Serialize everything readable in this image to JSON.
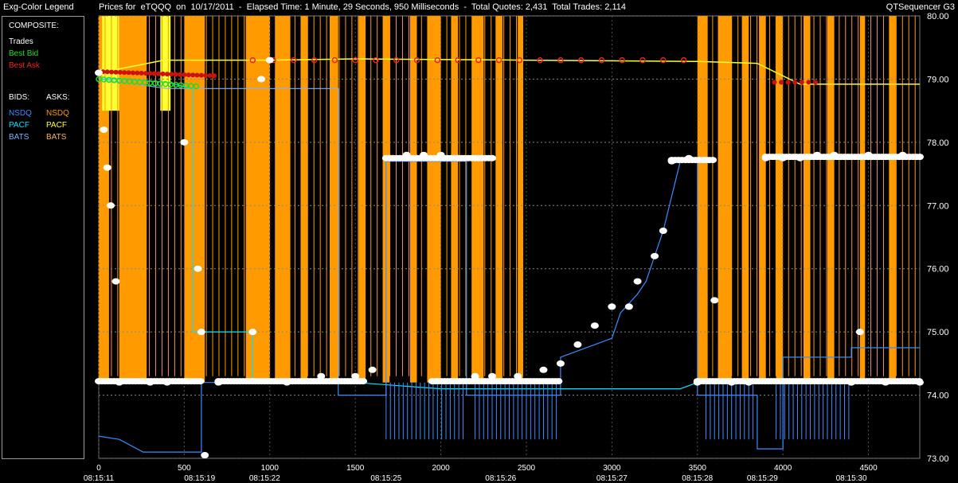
{
  "window": {
    "legend_title": "Exg-Color Legend",
    "chart_title": "Prices for  eTQQQ  on  10/17/2011  -  Elapsed Time: 1 Minute, 29 Seconds, 950 Milliseconds  -  Total Quotes: 2,431  Total Trades: 2,114",
    "app_name": "QTSequencer G3"
  },
  "legend": {
    "composite_heading": "COMPOSITE:",
    "composite_items": [
      {
        "label": "Trades",
        "color": "#ffffff"
      },
      {
        "label": "Best Bid",
        "color": "#22dd22"
      },
      {
        "label": "Best Ask",
        "color": "#ee2222"
      }
    ],
    "bids_heading": "BIDS:",
    "asks_heading": "ASKS:",
    "bids": [
      {
        "label": "NSDQ",
        "color": "#3c8cff"
      },
      {
        "label": "PACF",
        "color": "#00e5ff"
      },
      {
        "label": "BATS",
        "color": "#7fb2ff"
      }
    ],
    "asks": [
      {
        "label": "NSDQ",
        "color": "#ff9a00"
      },
      {
        "label": "PACF",
        "color": "#ffff33"
      },
      {
        "label": "BATS",
        "color": "#ffb060"
      }
    ]
  },
  "chart_data": {
    "type": "scatter",
    "title": "",
    "xlim": [
      0,
      4800
    ],
    "ylim": [
      73.0,
      80.0
    ],
    "y_ticks": [
      "80.00",
      "79.00",
      "78.00",
      "77.00",
      "76.00",
      "75.00",
      "74.00",
      "73.00"
    ],
    "x_ticks": [
      "0",
      "500",
      "1000",
      "1500",
      "2000",
      "2500",
      "3000",
      "3500",
      "4000",
      "4500"
    ],
    "time_labels": [
      {
        "x": 0,
        "label": "08:15:11"
      },
      {
        "x": 590,
        "label": "08:15:19"
      },
      {
        "x": 970,
        "label": "08:15:22"
      },
      {
        "x": 1680,
        "label": "08:15:25"
      },
      {
        "x": 2350,
        "label": "08:15:26"
      },
      {
        "x": 3000,
        "label": "08:15:27"
      },
      {
        "x": 3500,
        "label": "08:15:28"
      },
      {
        "x": 3880,
        "label": "08:15:29"
      },
      {
        "x": 4400,
        "label": "08:15:30"
      }
    ],
    "grid": true,
    "best_ask": [
      [
        0,
        79.15
      ],
      [
        100,
        79.15
      ],
      [
        380,
        79.3
      ],
      [
        1000,
        79.3
      ],
      [
        1500,
        79.32
      ],
      [
        2500,
        79.3
      ],
      [
        3500,
        79.28
      ],
      [
        3850,
        79.25
      ],
      [
        4100,
        78.92
      ],
      [
        4800,
        78.92
      ]
    ],
    "nsdq_bid": [
      [
        0,
        73.35
      ],
      [
        120,
        73.3
      ],
      [
        260,
        73.1
      ],
      [
        600,
        73.1
      ],
      [
        600,
        74.2
      ],
      [
        1400,
        74.2
      ],
      [
        1400,
        74.0
      ],
      [
        1680,
        74.0
      ],
      [
        1680,
        77.7
      ],
      [
        2150,
        77.7
      ],
      [
        2150,
        74.0
      ],
      [
        2700,
        74.0
      ],
      [
        2700,
        74.6
      ],
      [
        3000,
        74.9
      ],
      [
        3050,
        75.3
      ],
      [
        3150,
        75.6
      ],
      [
        3200,
        75.8
      ],
      [
        3300,
        76.6
      ],
      [
        3400,
        77.7
      ],
      [
        3500,
        77.7
      ],
      [
        3500,
        74.0
      ],
      [
        3850,
        74.0
      ],
      [
        3850,
        73.15
      ],
      [
        4000,
        73.15
      ],
      [
        4000,
        74.6
      ],
      [
        4400,
        74.6
      ],
      [
        4400,
        74.75
      ],
      [
        4800,
        74.75
      ]
    ],
    "pacf_bid": [
      [
        0,
        79.0
      ],
      [
        120,
        79.0
      ],
      [
        400,
        78.95
      ],
      [
        550,
        78.85
      ],
      [
        550,
        75.0
      ],
      [
        900,
        75.0
      ],
      [
        900,
        74.2
      ],
      [
        1500,
        74.2
      ],
      [
        2000,
        74.1
      ],
      [
        3400,
        74.1
      ],
      [
        3500,
        74.2
      ],
      [
        4800,
        74.2
      ]
    ],
    "bats_bid": [
      [
        0,
        79.0
      ],
      [
        400,
        78.85
      ],
      [
        1400,
        78.85
      ],
      [
        1400,
        74.2
      ]
    ],
    "trades": [
      [
        0,
        79.1
      ],
      [
        30,
        78.2
      ],
      [
        50,
        77.6
      ],
      [
        70,
        77.0
      ],
      [
        100,
        75.8
      ],
      [
        120,
        74.2
      ],
      [
        300,
        74.2
      ],
      [
        400,
        74.2
      ],
      [
        500,
        78.0
      ],
      [
        580,
        76.0
      ],
      [
        600,
        75.0
      ],
      [
        620,
        73.05
      ],
      [
        700,
        74.2
      ],
      [
        900,
        75.0
      ],
      [
        950,
        79.0
      ],
      [
        1000,
        79.3
      ],
      [
        1100,
        74.2
      ],
      [
        1300,
        74.3
      ],
      [
        1500,
        74.3
      ],
      [
        1600,
        74.4
      ],
      [
        1700,
        77.75
      ],
      [
        1800,
        77.8
      ],
      [
        1900,
        77.8
      ],
      [
        2000,
        77.8
      ],
      [
        2100,
        77.75
      ],
      [
        2200,
        74.3
      ],
      [
        2300,
        74.3
      ],
      [
        2450,
        74.3
      ],
      [
        2600,
        74.4
      ],
      [
        2700,
        74.5
      ],
      [
        2800,
        74.8
      ],
      [
        2900,
        75.1
      ],
      [
        3000,
        75.4
      ],
      [
        3100,
        75.4
      ],
      [
        3150,
        75.8
      ],
      [
        3250,
        76.2
      ],
      [
        3300,
        76.6
      ],
      [
        3350,
        77.7
      ],
      [
        3450,
        77.75
      ],
      [
        3500,
        74.2
      ],
      [
        3600,
        75.5
      ],
      [
        3700,
        74.2
      ],
      [
        3800,
        74.2
      ],
      [
        3900,
        77.75
      ],
      [
        4000,
        77.75
      ],
      [
        4100,
        77.75
      ],
      [
        4200,
        77.8
      ],
      [
        4300,
        77.8
      ],
      [
        4400,
        74.2
      ],
      [
        4450,
        75.0
      ],
      [
        4500,
        77.8
      ],
      [
        4600,
        74.2
      ],
      [
        4700,
        77.8
      ],
      [
        4800,
        74.2
      ]
    ],
    "ask_bands": [
      [
        0,
        60
      ],
      [
        120,
        280
      ],
      [
        500,
        620
      ],
      [
        860,
        1000
      ],
      [
        1030,
        1120
      ],
      [
        1180,
        1220
      ],
      [
        1350,
        1400
      ],
      [
        1520,
        1560
      ],
      [
        1660,
        1700
      ],
      [
        1820,
        1860
      ],
      [
        1920,
        2000
      ],
      [
        2060,
        2100
      ],
      [
        2180,
        2250
      ],
      [
        2320,
        2360
      ],
      [
        2450,
        2480
      ],
      [
        3500,
        3560
      ],
      [
        3620,
        3700
      ],
      [
        3760,
        3800
      ],
      [
        3860,
        3900
      ],
      [
        3960,
        4000
      ],
      [
        4120,
        4160
      ],
      [
        4260,
        4300
      ],
      [
        4450,
        4480
      ],
      [
        4620,
        4660
      ]
    ],
    "pacf_ask_bands": [
      [
        20,
        120
      ],
      [
        360,
        420
      ]
    ]
  }
}
